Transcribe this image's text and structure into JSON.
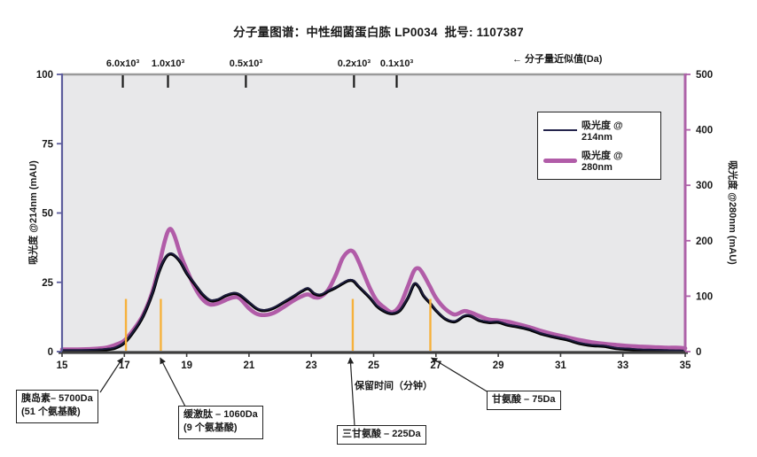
{
  "title": "分子量图谱：中性细菌蛋白胨 LP0034  批号: 1107387",
  "mw_note": "← 分子量近似值(Da)",
  "axes": {
    "left_title": "吸光度 @214nm (mAU)",
    "right_title": "吸光度 @280nm (mAU)",
    "x_title": "保留时间（分钟）"
  },
  "legend": {
    "items": [
      {
        "label": "吸光度 @ 214nm",
        "color": "#24244c",
        "style": "thin"
      },
      {
        "label": "吸光度 @ 280nm",
        "color": "#b15ca8",
        "style": "thick"
      }
    ]
  },
  "callouts": [
    {
      "line1": "胰岛素– 5700Da",
      "line2": "(51 个氨基酸)",
      "points_to_min": 16.95
    },
    {
      "line1": "缓激肽 – 1060Da",
      "line2": "(9 个氨基酸)",
      "points_to_min": 18.15
    },
    {
      "line1": "三甘氨酸 – 225Da",
      "points_to_min": 24.25
    },
    {
      "line1": "甘氨酸 – 75Da",
      "points_to_min": 26.85
    }
  ],
  "chart_data": {
    "type": "line",
    "title": "分子量图谱：中性细菌蛋白胨 LP0034  批号: 1107387",
    "background": "#e8e8ea",
    "x_axis": {
      "label": "保留时间（分钟）",
      "min": 15,
      "max": 35,
      "ticks": [
        15,
        17,
        19,
        21,
        23,
        25,
        27,
        29,
        31,
        33,
        35
      ]
    },
    "y_left": {
      "label": "吸光度 @214nm (mAU)",
      "min": 0,
      "max": 100,
      "ticks": [
        0,
        25,
        50,
        75,
        100
      ],
      "color": "#5c5c9c"
    },
    "y_right": {
      "label": "吸光度 @280nm (mAU)",
      "min": 0,
      "max": 500,
      "ticks": [
        0,
        100,
        200,
        300,
        400,
        500
      ],
      "color": "#ad62a8"
    },
    "mw_ticks": [
      {
        "label": "6.0x10³",
        "retention_min": 16.95
      },
      {
        "label": "1.0x10³",
        "retention_min": 18.4
      },
      {
        "label": "0.5x10³",
        "retention_min": 20.9
      },
      {
        "label": "0.2x10³",
        "retention_min": 24.37
      },
      {
        "label": "0.1x10³",
        "retention_min": 25.74
      }
    ],
    "markers": {
      "color": "#f6b13c",
      "height_left_units": 19,
      "x": [
        17.05,
        18.17,
        24.33,
        26.82
      ]
    },
    "x": [
      15.0,
      15.5,
      16.0,
      16.4,
      16.7,
      17.0,
      17.3,
      17.6,
      17.9,
      18.1,
      18.3,
      18.45,
      18.6,
      18.8,
      19.0,
      19.25,
      19.5,
      19.75,
      20.0,
      20.25,
      20.5,
      20.7,
      21.0,
      21.25,
      21.5,
      21.8,
      22.1,
      22.4,
      22.7,
      22.9,
      23.1,
      23.3,
      23.55,
      23.8,
      24.0,
      24.2,
      24.35,
      24.5,
      24.7,
      24.9,
      25.1,
      25.35,
      25.6,
      25.85,
      26.1,
      26.3,
      26.45,
      26.6,
      26.8,
      27.0,
      27.3,
      27.6,
      27.9,
      28.1,
      28.4,
      28.7,
      29.0,
      29.3,
      29.6,
      30.0,
      30.4,
      30.8,
      31.2,
      31.6,
      32.0,
      32.4,
      32.8,
      33.2,
      33.6,
      34.0,
      34.4,
      34.7,
      35.0
    ],
    "series": [
      {
        "name": "吸光度 @ 214nm",
        "axis": "left",
        "unit": "mAU",
        "color": "#1d1d40",
        "width": 2.6,
        "values": [
          0.3,
          0.3,
          0.4,
          0.7,
          1.5,
          3,
          7,
          13,
          21,
          28,
          33.5,
          35.5,
          34.5,
          32,
          28.5,
          24.5,
          20.5,
          18.5,
          18.8,
          20,
          21,
          20.5,
          17.5,
          15.5,
          15,
          15.5,
          17.5,
          20,
          21.8,
          22.3,
          21,
          20.7,
          21.5,
          23,
          24.8,
          25.6,
          25.2,
          23.8,
          21.5,
          19,
          16.5,
          14.5,
          13.5,
          15,
          19.5,
          24,
          23.2,
          20.5,
          17.5,
          14.5,
          12,
          11,
          12.4,
          12.8,
          11.5,
          10.4,
          10.4,
          9.7,
          9,
          7.8,
          6.4,
          5.2,
          4.1,
          3.1,
          2.3,
          1.6,
          1.1,
          0.8,
          0.5,
          0.4,
          0.3,
          0.2,
          0.1
        ]
      },
      {
        "name": "吸光度 @ 280nm",
        "axis": "right",
        "unit": "mAU",
        "color": "#b15ca8",
        "width": 4.6,
        "values": [
          4,
          4,
          5,
          7,
          12,
          20,
          40,
          66,
          108,
          152,
          200,
          221,
          210,
          175,
          148,
          117,
          95,
          85,
          87,
          93,
          98,
          96,
          78,
          68,
          66,
          70,
          80,
          91,
          100,
          103,
          98,
          99,
          112,
          140,
          168,
          181,
          180,
          165,
          138,
          112,
          92,
          79,
          71,
          84,
          118,
          146,
          150,
          139,
          118,
          97,
          77,
          67,
          73,
          71,
          64,
          58,
          56,
          54,
          50,
          44,
          37,
          31,
          26,
          21,
          17,
          14,
          12,
          10,
          9,
          8,
          7,
          7,
          6
        ]
      }
    ]
  }
}
